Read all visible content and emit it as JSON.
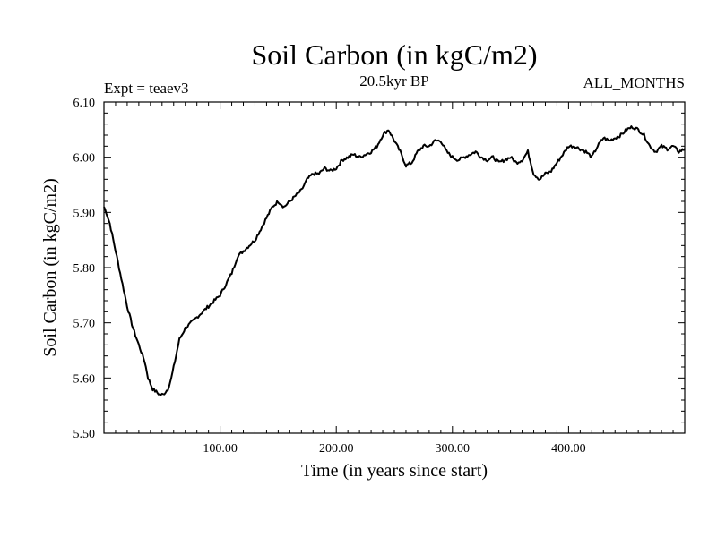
{
  "chart_data": {
    "type": "line",
    "title": "Soil Carbon (in kgC/m2)",
    "subtitle_left": "Expt = teaev3",
    "subtitle_center": "20.5kyr BP",
    "subtitle_right": "ALL_MONTHS",
    "xlabel": "Time (in years since start)",
    "ylabel": "Soil Carbon (in kgC/m2)",
    "xlim": [
      0,
      500
    ],
    "ylim": [
      5.5,
      6.1
    ],
    "x_ticks": [
      100,
      200,
      300,
      400
    ],
    "x_tick_labels": [
      "100.00",
      "200.00",
      "300.00",
      "400.00"
    ],
    "y_ticks": [
      5.5,
      5.6,
      5.7,
      5.8,
      5.9,
      6.0,
      6.1
    ],
    "y_tick_labels": [
      "5.50",
      "5.60",
      "5.70",
      "5.80",
      "5.90",
      "6.00",
      "6.10"
    ],
    "grid": false,
    "series": [
      {
        "name": "Soil Carbon",
        "color": "#000000",
        "x": [
          0,
          2,
          5,
          8,
          12,
          16,
          20,
          25,
          30,
          35,
          38,
          42,
          45,
          48,
          51,
          55,
          58,
          62,
          65,
          70,
          75,
          80,
          85,
          90,
          95,
          100,
          105,
          110,
          115,
          120,
          125,
          130,
          135,
          140,
          145,
          150,
          155,
          160,
          165,
          170,
          175,
          180,
          185,
          190,
          195,
          200,
          205,
          210,
          215,
          220,
          225,
          230,
          235,
          240,
          245,
          250,
          255,
          260,
          265,
          270,
          275,
          280,
          285,
          290,
          295,
          300,
          305,
          310,
          315,
          320,
          325,
          330,
          335,
          340,
          345,
          350,
          355,
          360,
          365,
          370,
          375,
          380,
          385,
          390,
          395,
          400,
          405,
          410,
          415,
          420,
          425,
          430,
          435,
          440,
          445,
          450,
          455,
          460,
          465,
          470,
          475,
          480,
          485,
          490,
          495,
          500
        ],
        "values": [
          5.91,
          5.9,
          5.88,
          5.85,
          5.81,
          5.77,
          5.73,
          5.69,
          5.66,
          5.63,
          5.6,
          5.58,
          5.575,
          5.57,
          5.57,
          5.58,
          5.6,
          5.64,
          5.67,
          5.69,
          5.7,
          5.71,
          5.72,
          5.73,
          5.74,
          5.75,
          5.77,
          5.79,
          5.82,
          5.83,
          5.84,
          5.85,
          5.87,
          5.89,
          5.91,
          5.92,
          5.91,
          5.92,
          5.93,
          5.94,
          5.96,
          5.97,
          5.97,
          5.98,
          5.975,
          5.98,
          5.995,
          6.0,
          6.005,
          6.0,
          6.005,
          6.01,
          6.02,
          6.04,
          6.05,
          6.03,
          6.01,
          5.985,
          5.99,
          6.01,
          6.02,
          6.02,
          6.03,
          6.03,
          6.01,
          6.0,
          5.995,
          6.0,
          6.005,
          6.01,
          6.0,
          5.995,
          6.0,
          5.99,
          5.995,
          6.0,
          5.99,
          5.995,
          6.01,
          5.97,
          5.96,
          5.97,
          5.975,
          5.99,
          6.005,
          6.02,
          6.02,
          6.015,
          6.01,
          6.0,
          6.02,
          6.035,
          6.03,
          6.035,
          6.04,
          6.05,
          6.055,
          6.05,
          6.04,
          6.02,
          6.01,
          6.02,
          6.015,
          6.02,
          6.01,
          6.015
        ]
      }
    ]
  }
}
